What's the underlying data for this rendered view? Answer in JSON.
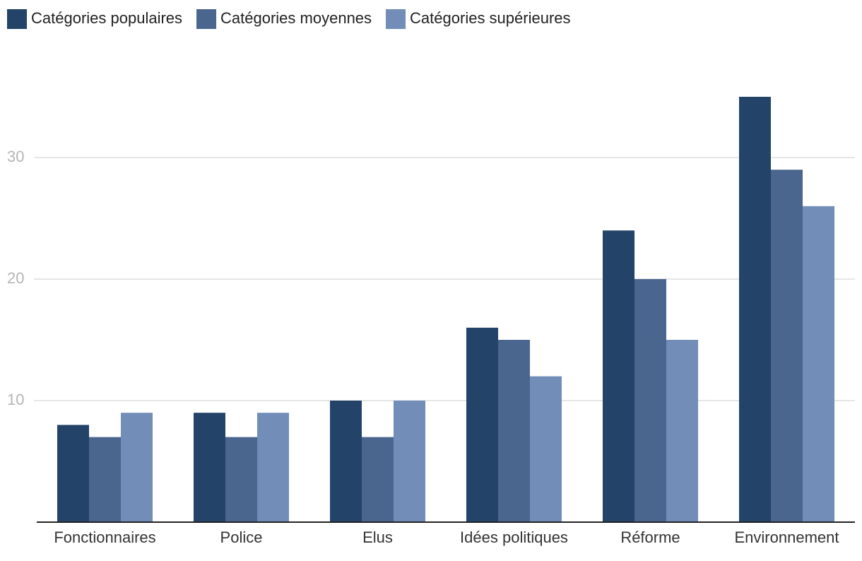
{
  "chart_data": {
    "type": "bar",
    "categories": [
      "Fonctionnaires",
      "Police",
      "Elus",
      "Idées politiques",
      "Réforme",
      "Environnement"
    ],
    "series": [
      {
        "name": "Catégories populaires",
        "color": "#234369",
        "values": [
          8,
          9,
          10,
          16,
          24,
          35
        ]
      },
      {
        "name": "Catégories moyennes",
        "color": "#4a668f",
        "values": [
          7,
          7,
          7,
          15,
          20,
          29
        ]
      },
      {
        "name": "Catégories supérieures",
        "color": "#718db8",
        "values": [
          9,
          9,
          10,
          12,
          15,
          26
        ]
      }
    ],
    "ylim": [
      0,
      39
    ],
    "yticks": [
      10,
      20,
      30
    ],
    "grid": true,
    "legend": "top-left"
  }
}
